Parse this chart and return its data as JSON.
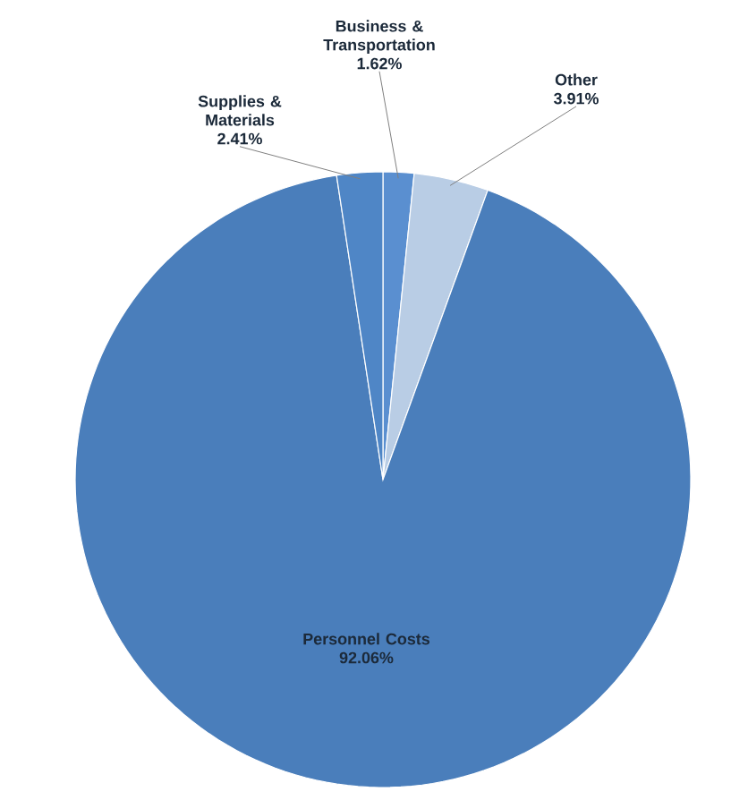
{
  "chart_data": {
    "type": "pie",
    "categories": [
      "Business & Transportation",
      "Other",
      "Personnel Costs",
      "Supplies & Materials"
    ],
    "values": [
      1.62,
      3.91,
      92.06,
      2.41
    ],
    "value_labels": [
      "1.62%",
      "3.91%",
      "92.06%",
      "2.41%"
    ],
    "colors": [
      "#5a8fd0",
      "#b9cde5",
      "#4a7ebb",
      "#4f86c6"
    ]
  }
}
